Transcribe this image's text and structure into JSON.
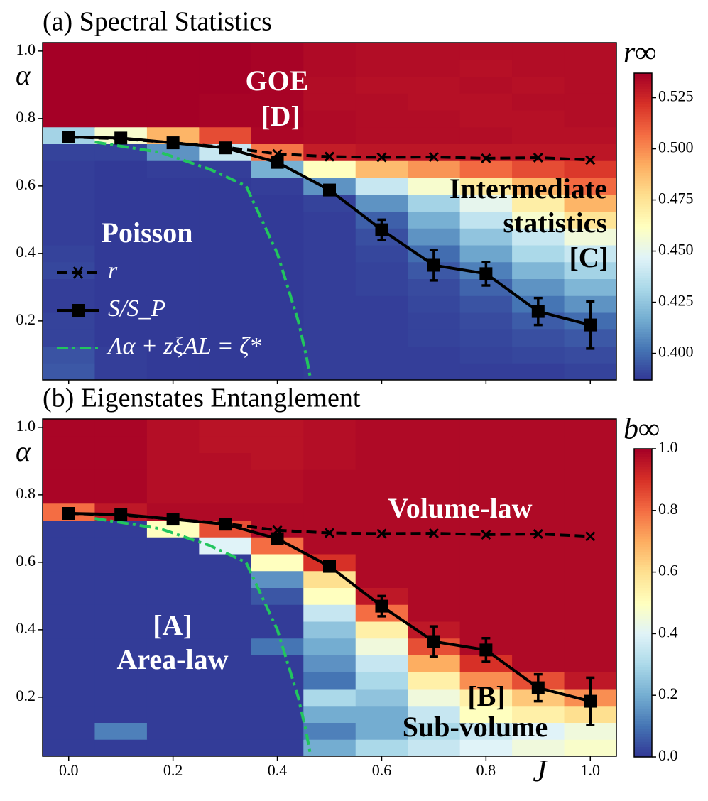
{
  "chart_data": [
    {
      "type": "heatmap",
      "title": "(a) Spectral Statistics",
      "ylabel": "α",
      "colorbar_label": "r∞",
      "cmap": "RdYlBu_r",
      "x": [
        0,
        0.1,
        0.2,
        0.3,
        0.4,
        0.5,
        0.6,
        0.7,
        0.8,
        0.9,
        1.0
      ],
      "y": [
        0.05,
        0.1,
        0.15,
        0.2,
        0.25,
        0.3,
        0.35,
        0.4,
        0.45,
        0.5,
        0.55,
        0.6,
        0.65,
        0.7,
        0.75,
        0.8,
        0.85,
        0.9,
        0.95,
        1.0
      ],
      "z": [
        [
          0.395,
          0.389,
          0.388,
          0.388,
          0.388,
          0.389,
          0.389,
          0.389,
          0.389,
          0.389,
          0.39
        ],
        [
          0.394,
          0.389,
          0.388,
          0.388,
          0.388,
          0.389,
          0.389,
          0.389,
          0.39,
          0.391,
          0.392
        ],
        [
          0.39,
          0.388,
          0.388,
          0.388,
          0.388,
          0.389,
          0.389,
          0.39,
          0.391,
          0.393,
          0.395
        ],
        [
          0.39,
          0.388,
          0.388,
          0.388,
          0.388,
          0.389,
          0.389,
          0.39,
          0.392,
          0.396,
          0.4
        ],
        [
          0.389,
          0.388,
          0.388,
          0.388,
          0.388,
          0.389,
          0.389,
          0.391,
          0.394,
          0.402,
          0.41
        ],
        [
          0.389,
          0.388,
          0.388,
          0.388,
          0.388,
          0.389,
          0.39,
          0.392,
          0.398,
          0.41,
          0.42
        ],
        [
          0.391,
          0.388,
          0.388,
          0.388,
          0.388,
          0.389,
          0.39,
          0.395,
          0.405,
          0.42,
          0.43
        ],
        [
          0.39,
          0.388,
          0.388,
          0.388,
          0.388,
          0.389,
          0.391,
          0.4,
          0.415,
          0.432,
          0.44
        ],
        [
          0.389,
          0.388,
          0.388,
          0.388,
          0.388,
          0.389,
          0.393,
          0.41,
          0.425,
          0.44,
          0.455
        ],
        [
          0.389,
          0.388,
          0.388,
          0.388,
          0.388,
          0.389,
          0.397,
          0.418,
          0.438,
          0.458,
          0.475
        ],
        [
          0.389,
          0.388,
          0.388,
          0.388,
          0.388,
          0.39,
          0.41,
          0.43,
          0.45,
          0.47,
          0.49
        ],
        [
          0.389,
          0.388,
          0.388,
          0.388,
          0.389,
          0.41,
          0.44,
          0.458,
          0.472,
          0.49,
          0.508
        ],
        [
          0.389,
          0.388,
          0.389,
          0.389,
          0.418,
          0.462,
          0.488,
          0.498,
          0.508,
          0.515,
          0.52
        ],
        [
          0.39,
          0.39,
          0.41,
          0.44,
          0.505,
          0.528,
          0.53,
          0.53,
          0.53,
          0.53,
          0.53
        ],
        [
          0.43,
          0.458,
          0.49,
          0.515,
          0.535,
          0.534,
          0.533,
          0.533,
          0.533,
          0.532,
          0.532
        ],
        [
          0.537,
          0.537,
          0.537,
          0.536,
          0.536,
          0.534,
          0.533,
          0.533,
          0.532,
          0.532,
          0.533
        ],
        [
          0.537,
          0.537,
          0.537,
          0.536,
          0.536,
          0.533,
          0.533,
          0.532,
          0.532,
          0.533,
          0.533
        ],
        [
          0.537,
          0.537,
          0.537,
          0.537,
          0.536,
          0.533,
          0.532,
          0.532,
          0.533,
          0.532,
          0.533
        ],
        [
          0.537,
          0.537,
          0.537,
          0.537,
          0.536,
          0.534,
          0.533,
          0.533,
          0.532,
          0.533,
          0.533
        ],
        [
          0.537,
          0.537,
          0.537,
          0.537,
          0.536,
          0.534,
          0.533,
          0.533,
          0.533,
          0.533,
          0.533
        ]
      ],
      "xlim": [
        -0.05,
        1.05
      ],
      "ylim": [
        0.025,
        1.025
      ],
      "xticks": [
        {
          "value": 0,
          "label": "0.0"
        },
        0.2,
        0.4,
        0.6,
        0.8,
        {
          "value": 1,
          "label": "1.0"
        }
      ],
      "xticklabels": false,
      "yticks": [
        0.2,
        0.4,
        0.6,
        0.8,
        {
          "value": 1,
          "label": "1.0"
        }
      ],
      "clim": [
        0.387,
        0.537
      ],
      "cticks": [
        {
          "value": 0.4,
          "label": "0.400"
        },
        0.425,
        {
          "value": 0.45,
          "label": "0.450"
        },
        0.475,
        {
          "value": 0.5,
          "label": "0.500"
        },
        0.525
      ],
      "series": [
        {
          "name": "r",
          "color": "#000000",
          "linestyle": "dashed",
          "marker": "x",
          "x": [
            0,
            0.1,
            0.2,
            0.3,
            0.4,
            0.5,
            0.6,
            0.7,
            0.8,
            0.9,
            1.0
          ],
          "values": [
            0.745,
            0.74,
            0.728,
            0.715,
            0.695,
            0.687,
            0.685,
            0.686,
            0.682,
            0.684,
            0.677
          ]
        },
        {
          "name": "S/S_P",
          "color": "#000000",
          "linestyle": "solid",
          "marker": "square",
          "x": [
            0,
            0.1,
            0.2,
            0.3,
            0.4,
            0.5,
            0.6,
            0.7,
            0.8,
            0.9,
            1.0
          ],
          "values": [
            0.745,
            0.742,
            0.728,
            0.713,
            0.67,
            0.588,
            0.47,
            0.365,
            0.34,
            0.228,
            0.188
          ],
          "errors": [
            0.005,
            0.005,
            0.005,
            0.005,
            0.01,
            0.01,
            0.03,
            0.045,
            0.035,
            0.04,
            0.07
          ]
        },
        {
          "name": "Λα + zξAL = ζ*",
          "color": "#22c55e",
          "linestyle": "dashdot",
          "x": [
            0.05,
            0.175,
            0.27,
            0.34,
            0.37,
            0.4,
            0.42,
            0.44,
            0.455,
            0.464
          ],
          "values": [
            0.73,
            0.7,
            0.65,
            0.6,
            0.5,
            0.4,
            0.3,
            0.2,
            0.1,
            0.025
          ]
        }
      ],
      "annotations": [
        "GOE",
        "[D]",
        "Intermediate",
        "statistics",
        "[C]",
        "Poisson"
      ]
    },
    {
      "type": "heatmap",
      "title": "(b) Eigenstates Entanglement",
      "xlabel": "J",
      "ylabel": "α",
      "colorbar_label": "b∞",
      "cmap": "RdYlBu_r",
      "x": [
        0,
        0.1,
        0.2,
        0.3,
        0.4,
        0.5,
        0.6,
        0.7,
        0.8,
        0.9,
        1.0
      ],
      "y": [
        0.05,
        0.1,
        0.15,
        0.2,
        0.25,
        0.3,
        0.35,
        0.4,
        0.45,
        0.5,
        0.55,
        0.6,
        0.65,
        0.7,
        0.75,
        0.8,
        0.85,
        0.9,
        0.95,
        1.0
      ],
      "z": [
        [
          0.01,
          0.01,
          0.01,
          0.01,
          0.01,
          0.2,
          0.3,
          0.35,
          0.4,
          0.45,
          0.48
        ],
        [
          0.01,
          0.12,
          0.01,
          0.01,
          0.01,
          0.12,
          0.2,
          0.3,
          0.35,
          0.4,
          0.45
        ],
        [
          0.01,
          0.01,
          0.01,
          0.01,
          0.01,
          0.2,
          0.2,
          0.35,
          0.5,
          0.55,
          0.6
        ],
        [
          0.01,
          0.01,
          0.01,
          0.01,
          0.01,
          0.3,
          0.25,
          0.45,
          0.55,
          0.65,
          0.75
        ],
        [
          0.01,
          0.01,
          0.01,
          0.01,
          0.01,
          0.1,
          0.3,
          0.55,
          0.75,
          0.85,
          0.95
        ],
        [
          0.01,
          0.01,
          0.01,
          0.01,
          0.01,
          0.15,
          0.35,
          0.7,
          0.9,
          0.98,
          0.98
        ],
        [
          0.01,
          0.01,
          0.01,
          0.01,
          0.1,
          0.2,
          0.45,
          0.85,
          0.98,
          0.98,
          0.98
        ],
        [
          0.01,
          0.01,
          0.01,
          0.01,
          0.01,
          0.25,
          0.55,
          0.95,
          0.98,
          0.98,
          0.98
        ],
        [
          0.01,
          0.01,
          0.01,
          0.01,
          0.01,
          0.35,
          0.8,
          0.98,
          0.98,
          0.98,
          0.98
        ],
        [
          0.01,
          0.01,
          0.01,
          0.01,
          0.05,
          0.5,
          0.95,
          0.98,
          0.98,
          0.98,
          0.98
        ],
        [
          0.01,
          0.01,
          0.01,
          0.01,
          0.15,
          0.6,
          0.98,
          0.98,
          0.98,
          0.98,
          0.98
        ],
        [
          0.01,
          0.01,
          0.01,
          0.01,
          0.5,
          0.9,
          0.98,
          0.98,
          0.98,
          0.98,
          0.98
        ],
        [
          0.01,
          0.01,
          0.01,
          0.4,
          0.8,
          0.98,
          0.98,
          0.98,
          0.98,
          0.98,
          0.98
        ],
        [
          0.01,
          0.01,
          0.5,
          0.85,
          0.98,
          0.98,
          0.98,
          0.98,
          0.98,
          0.98,
          0.98
        ],
        [
          0.8,
          0.95,
          0.98,
          0.98,
          0.98,
          0.98,
          0.98,
          0.98,
          0.98,
          0.98,
          0.98
        ],
        [
          0.99,
          0.99,
          0.97,
          0.97,
          0.97,
          0.98,
          0.98,
          0.98,
          0.98,
          0.98,
          0.98
        ],
        [
          0.99,
          0.99,
          0.97,
          0.97,
          0.97,
          0.98,
          0.98,
          0.98,
          0.98,
          0.98,
          0.98
        ],
        [
          0.99,
          0.99,
          0.97,
          0.97,
          0.96,
          0.97,
          0.98,
          0.98,
          0.98,
          0.98,
          0.98
        ],
        [
          0.99,
          0.99,
          0.97,
          0.96,
          0.96,
          0.97,
          0.98,
          0.98,
          0.98,
          0.98,
          0.98
        ],
        [
          0.99,
          0.99,
          0.97,
          0.96,
          0.96,
          0.97,
          0.98,
          0.98,
          0.98,
          0.98,
          0.98
        ]
      ],
      "xlim": [
        -0.05,
        1.05
      ],
      "ylim": [
        0.025,
        1.025
      ],
      "xticks": [
        {
          "value": 0,
          "label": "0.0"
        },
        0.2,
        0.4,
        0.6,
        0.8,
        {
          "value": 1,
          "label": "1.0"
        }
      ],
      "xticklabels": true,
      "yticks": [
        0.2,
        0.4,
        0.6,
        0.8,
        {
          "value": 1,
          "label": "1.0"
        }
      ],
      "clim": [
        0,
        1
      ],
      "cticks": [
        {
          "value": 0,
          "label": "0.0"
        },
        0.2,
        0.4,
        0.6,
        0.8,
        {
          "value": 1,
          "label": "1.0"
        }
      ],
      "series": [
        {
          "color": "#000000",
          "linestyle": "dashed",
          "marker": "x",
          "x": [
            0,
            0.1,
            0.2,
            0.3,
            0.4,
            0.5,
            0.6,
            0.7,
            0.8,
            0.9,
            1.0
          ],
          "values": [
            0.745,
            0.74,
            0.728,
            0.715,
            0.695,
            0.687,
            0.685,
            0.686,
            0.682,
            0.684,
            0.677
          ]
        },
        {
          "color": "#000000",
          "linestyle": "solid",
          "marker": "square",
          "x": [
            0,
            0.1,
            0.2,
            0.3,
            0.4,
            0.5,
            0.6,
            0.7,
            0.8,
            0.9,
            1.0
          ],
          "values": [
            0.745,
            0.742,
            0.728,
            0.713,
            0.67,
            0.588,
            0.47,
            0.365,
            0.34,
            0.228,
            0.188
          ],
          "errors": [
            0.005,
            0.005,
            0.005,
            0.005,
            0.01,
            0.01,
            0.03,
            0.045,
            0.035,
            0.04,
            0.07
          ]
        },
        {
          "color": "#22c55e",
          "linestyle": "dashdot",
          "x": [
            0.05,
            0.175,
            0.27,
            0.34,
            0.37,
            0.4,
            0.42,
            0.44,
            0.455,
            0.464
          ],
          "values": [
            0.73,
            0.7,
            0.65,
            0.6,
            0.5,
            0.4,
            0.3,
            0.2,
            0.1,
            0.025
          ]
        }
      ],
      "annotations": [
        "Volume-law",
        "[A]",
        "Area-law",
        "[B]",
        "Sub-volume"
      ]
    }
  ]
}
